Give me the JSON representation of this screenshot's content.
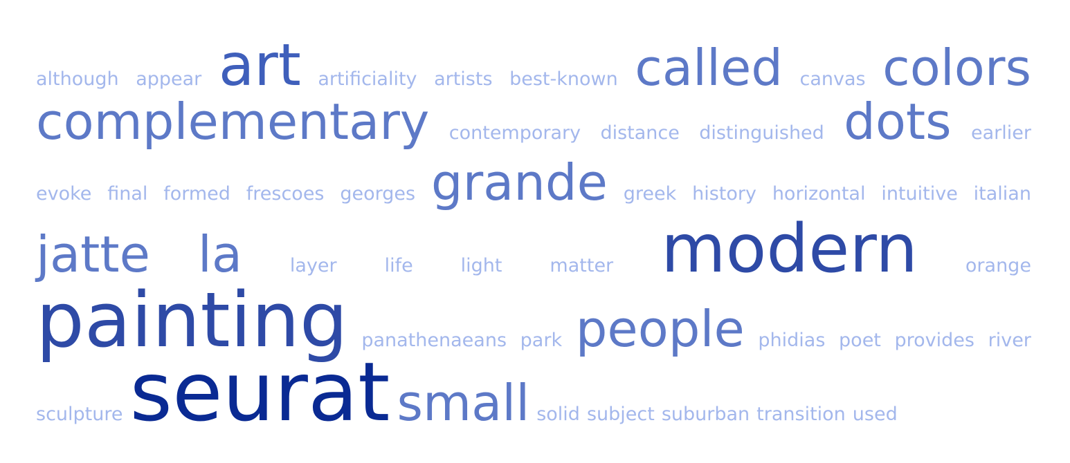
{
  "colors": {
    "xs": "#a3b7ec",
    "m": "#6a84cb",
    "l": "#5d79c7",
    "xl": "#3f5fbb",
    "xxl": "#2e4aa6",
    "max": "#0a2a93"
  },
  "rows": [
    [
      {
        "text": "although",
        "level": "xs"
      },
      {
        "text": "appear",
        "level": "xs"
      },
      {
        "text": "art",
        "level": "xl"
      },
      {
        "text": "artificiality",
        "level": "xs"
      },
      {
        "text": "artists",
        "level": "xs"
      },
      {
        "text": "best-known",
        "level": "xs"
      },
      {
        "text": "called",
        "level": "l"
      },
      {
        "text": "canvas",
        "level": "xs"
      },
      {
        "text": "colors",
        "level": "l"
      }
    ],
    [
      {
        "text": "complementary",
        "level": "l"
      },
      {
        "text": "contemporary",
        "level": "xs"
      },
      {
        "text": "distance",
        "level": "xs"
      },
      {
        "text": "distinguished",
        "level": "xs"
      },
      {
        "text": "dots",
        "level": "l"
      },
      {
        "text": "earlier",
        "level": "xs"
      }
    ],
    [
      {
        "text": "evoke",
        "level": "xs"
      },
      {
        "text": "final",
        "level": "xs"
      },
      {
        "text": "formed",
        "level": "xs"
      },
      {
        "text": "frescoes",
        "level": "xs"
      },
      {
        "text": "georges",
        "level": "xs"
      },
      {
        "text": "grande",
        "level": "l"
      },
      {
        "text": "greek",
        "level": "xs"
      },
      {
        "text": "history",
        "level": "xs"
      },
      {
        "text": "horizontal",
        "level": "xs"
      },
      {
        "text": "intuitive",
        "level": "xs"
      },
      {
        "text": "italian",
        "level": "xs"
      }
    ],
    [
      {
        "text": "jatte",
        "level": "l"
      },
      {
        "text": "la",
        "level": "l"
      },
      {
        "text": "layer",
        "level": "xs"
      },
      {
        "text": "life",
        "level": "xs"
      },
      {
        "text": "light",
        "level": "xs"
      },
      {
        "text": "matter",
        "level": "xs"
      },
      {
        "text": "modern",
        "level": "xxl"
      },
      {
        "text": "orange",
        "level": "xs"
      }
    ],
    [
      {
        "text": "painting",
        "level": "max2"
      },
      {
        "text": "panathenaeans",
        "level": "xs"
      },
      {
        "text": "park",
        "level": "xs"
      },
      {
        "text": "people",
        "level": "l"
      },
      {
        "text": "phidias",
        "level": "xs"
      },
      {
        "text": "poet",
        "level": "xs"
      },
      {
        "text": "provides",
        "level": "xs"
      },
      {
        "text": "river",
        "level": "xs"
      }
    ],
    [
      {
        "text": "sculpture",
        "level": "xs"
      },
      {
        "text": "seurat",
        "level": "max"
      },
      {
        "text": "small",
        "level": "l"
      },
      {
        "text": "solid",
        "level": "xs"
      },
      {
        "text": "subject",
        "level": "xs"
      },
      {
        "text": "suburban",
        "level": "xs"
      },
      {
        "text": "transition",
        "level": "xs"
      },
      {
        "text": "used",
        "level": "xs"
      }
    ]
  ]
}
